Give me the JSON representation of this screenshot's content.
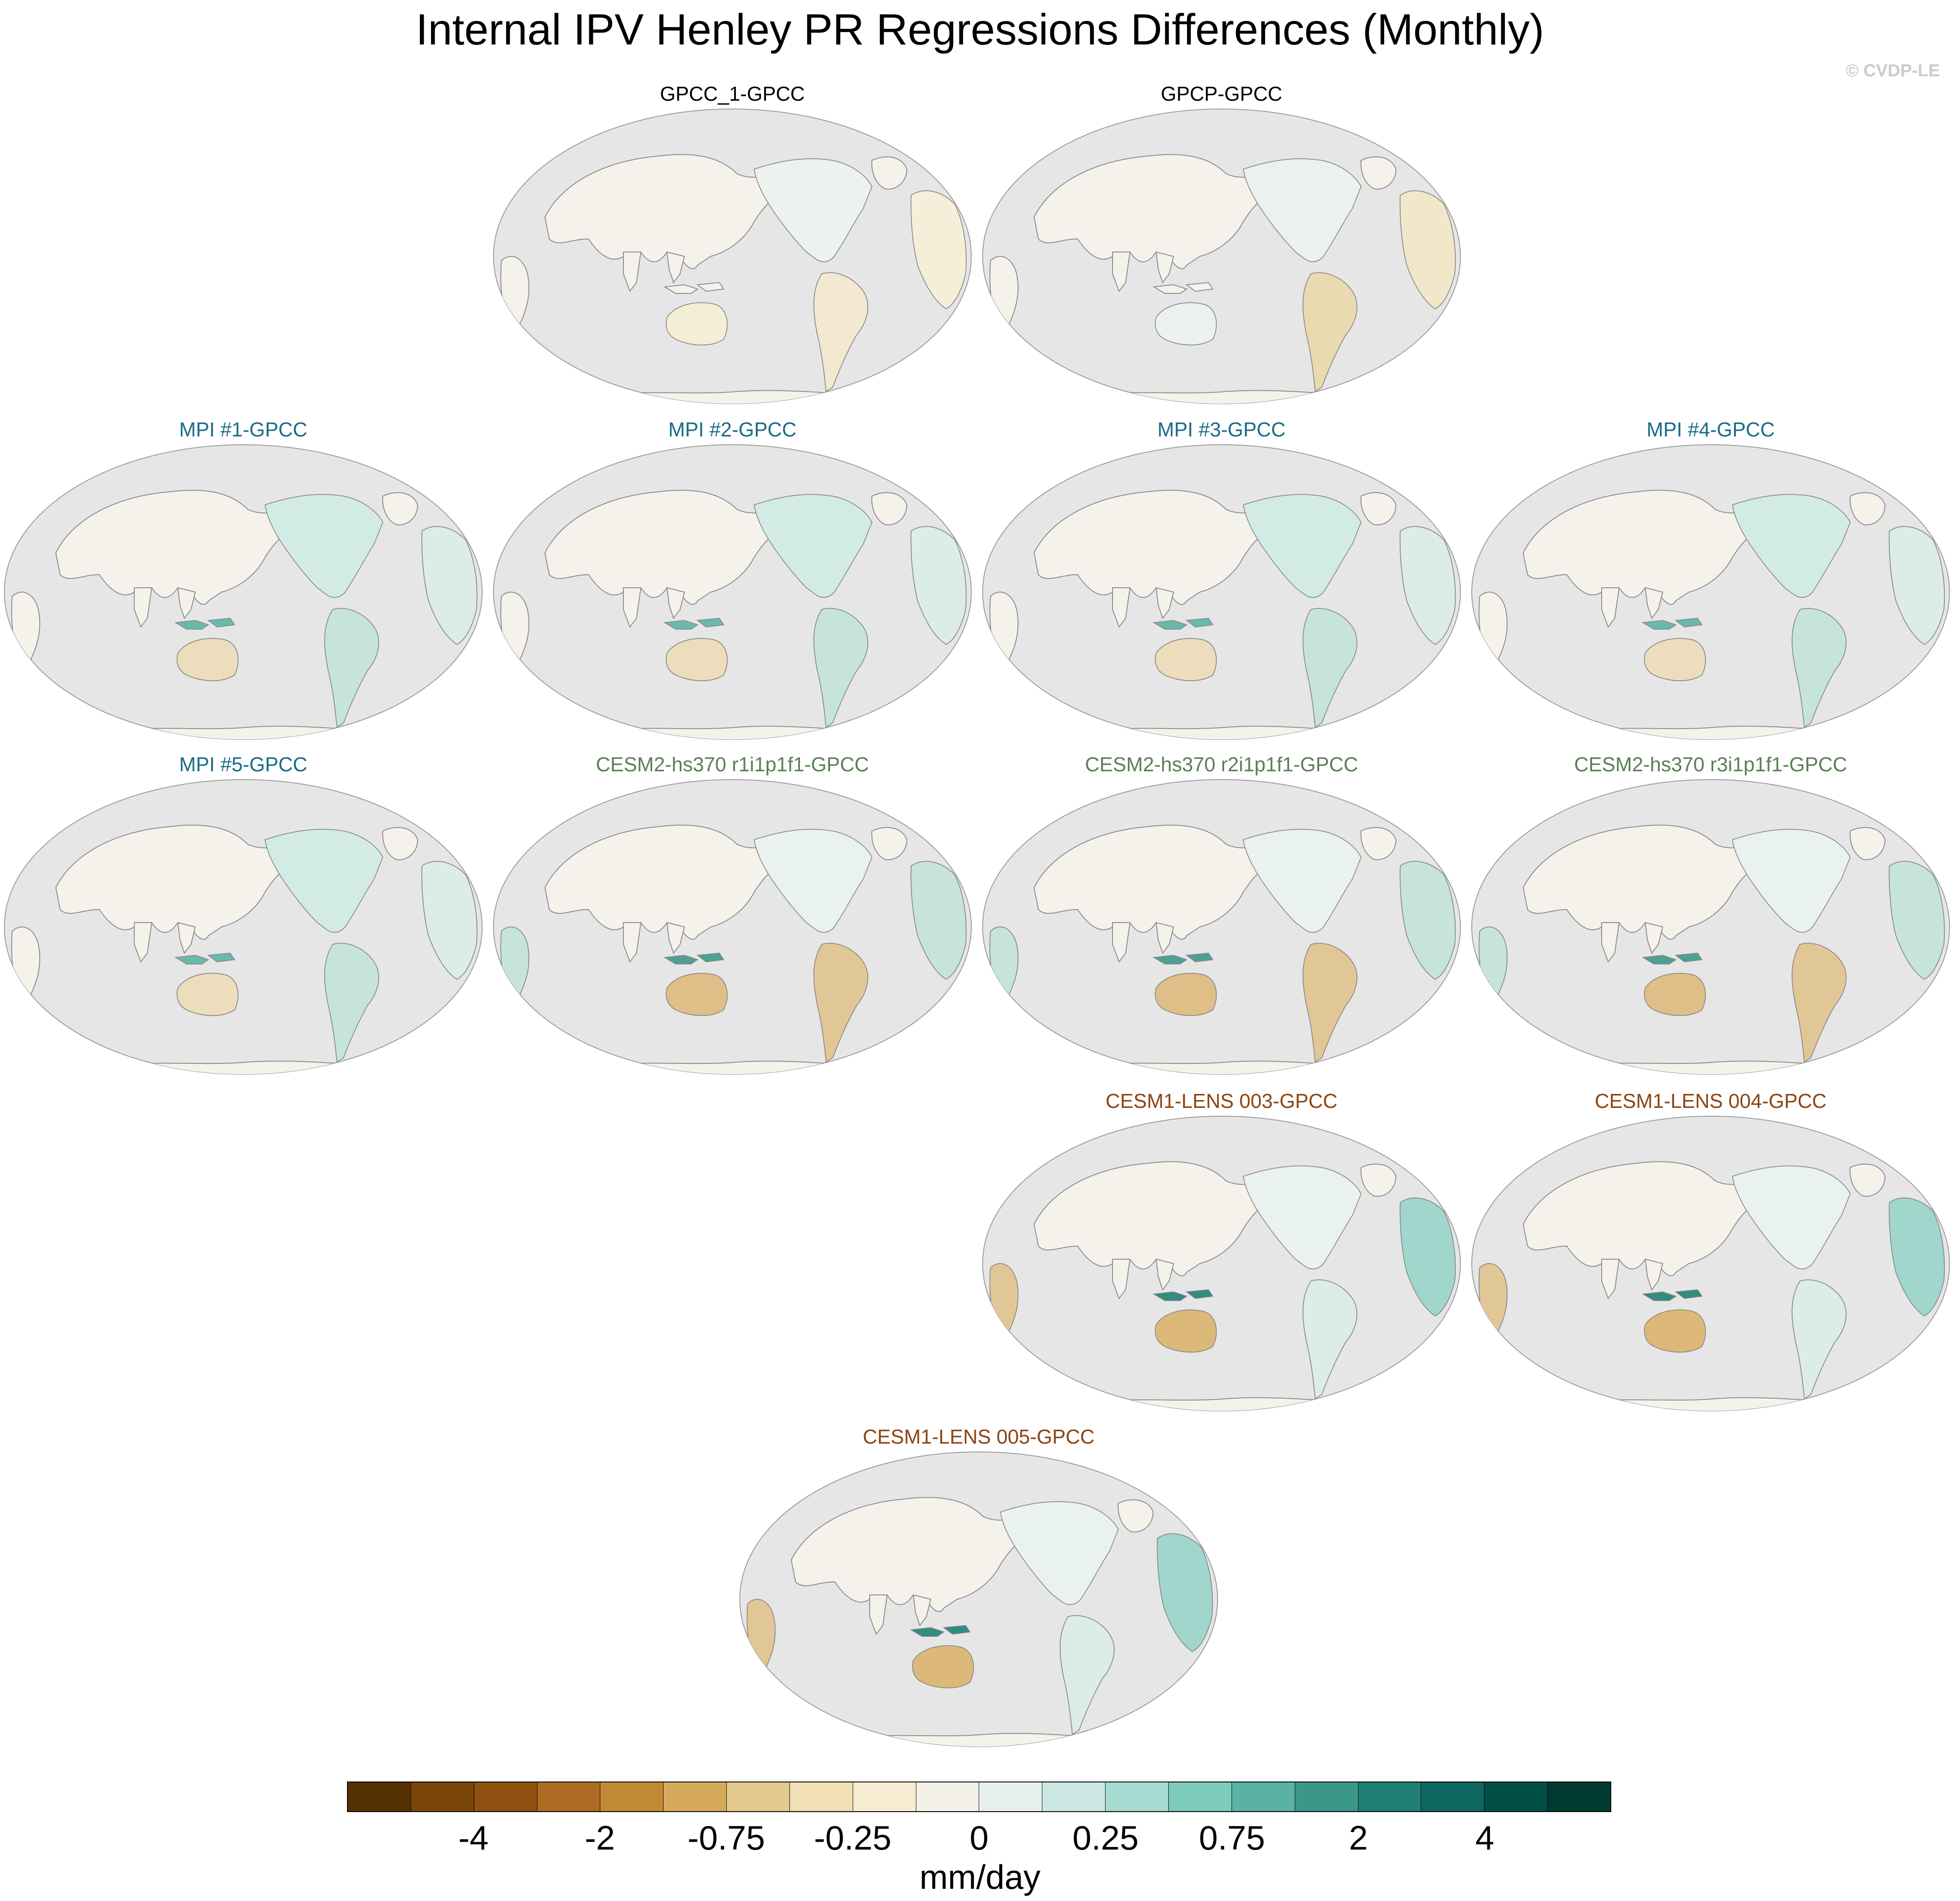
{
  "title": "Internal IPV Henley PR Regressions Differences (Monthly)",
  "credit": "© CVDP-LE",
  "panels": [
    {
      "title": "GPCC_1-GPCC",
      "color": "#000000",
      "pattern": "obs-weak"
    },
    {
      "title": "GPCP-GPCC",
      "color": "#000000",
      "pattern": "obs-brazil-dry"
    },
    {
      "title": "MPI #1-GPCC",
      "color": "#1b6b87",
      "pattern": "model"
    },
    {
      "title": "MPI #2-GPCC",
      "color": "#1b6b87",
      "pattern": "model"
    },
    {
      "title": "MPI #3-GPCC",
      "color": "#1b6b87",
      "pattern": "model"
    },
    {
      "title": "MPI #4-GPCC",
      "color": "#1b6b87",
      "pattern": "model"
    },
    {
      "title": "MPI #5-GPCC",
      "color": "#1b6b87",
      "pattern": "model"
    },
    {
      "title": "CESM2-hs370 r1i1p1f1-GPCC",
      "color": "#5a8055",
      "pattern": "model-dry"
    },
    {
      "title": "CESM2-hs370 r2i1p1f1-GPCC",
      "color": "#5a8055",
      "pattern": "model-dry"
    },
    {
      "title": "CESM2-hs370 r3i1p1f1-GPCC",
      "color": "#5a8055",
      "pattern": "model-dry"
    },
    {
      "title": "CESM1-LENS 003-GPCC",
      "color": "#8b4513",
      "pattern": "model-wet"
    },
    {
      "title": "CESM1-LENS 004-GPCC",
      "color": "#8b4513",
      "pattern": "model-wet"
    },
    {
      "title": "CESM1-LENS 005-GPCC",
      "color": "#8b4513",
      "pattern": "model-wet"
    }
  ],
  "colorbar": {
    "colors": [
      "#553003",
      "#7a4508",
      "#905010",
      "#ad6a22",
      "#c38a35",
      "#d6aa5d",
      "#e3c98b",
      "#f1e0b5",
      "#f5ecd2",
      "#f3f0e8",
      "#e6f1ef",
      "#cbe8e3",
      "#a6dbd2",
      "#7ccbbd",
      "#5ab2a5",
      "#3c978b",
      "#1f7f74",
      "#0f6860",
      "#024f46",
      "#013a30"
    ],
    "tick_labels": [
      "-4",
      "-2",
      "-0.75",
      "-0.25",
      "0",
      "0.25",
      "0.75",
      "2",
      "4"
    ],
    "unit": "mm/day"
  }
}
